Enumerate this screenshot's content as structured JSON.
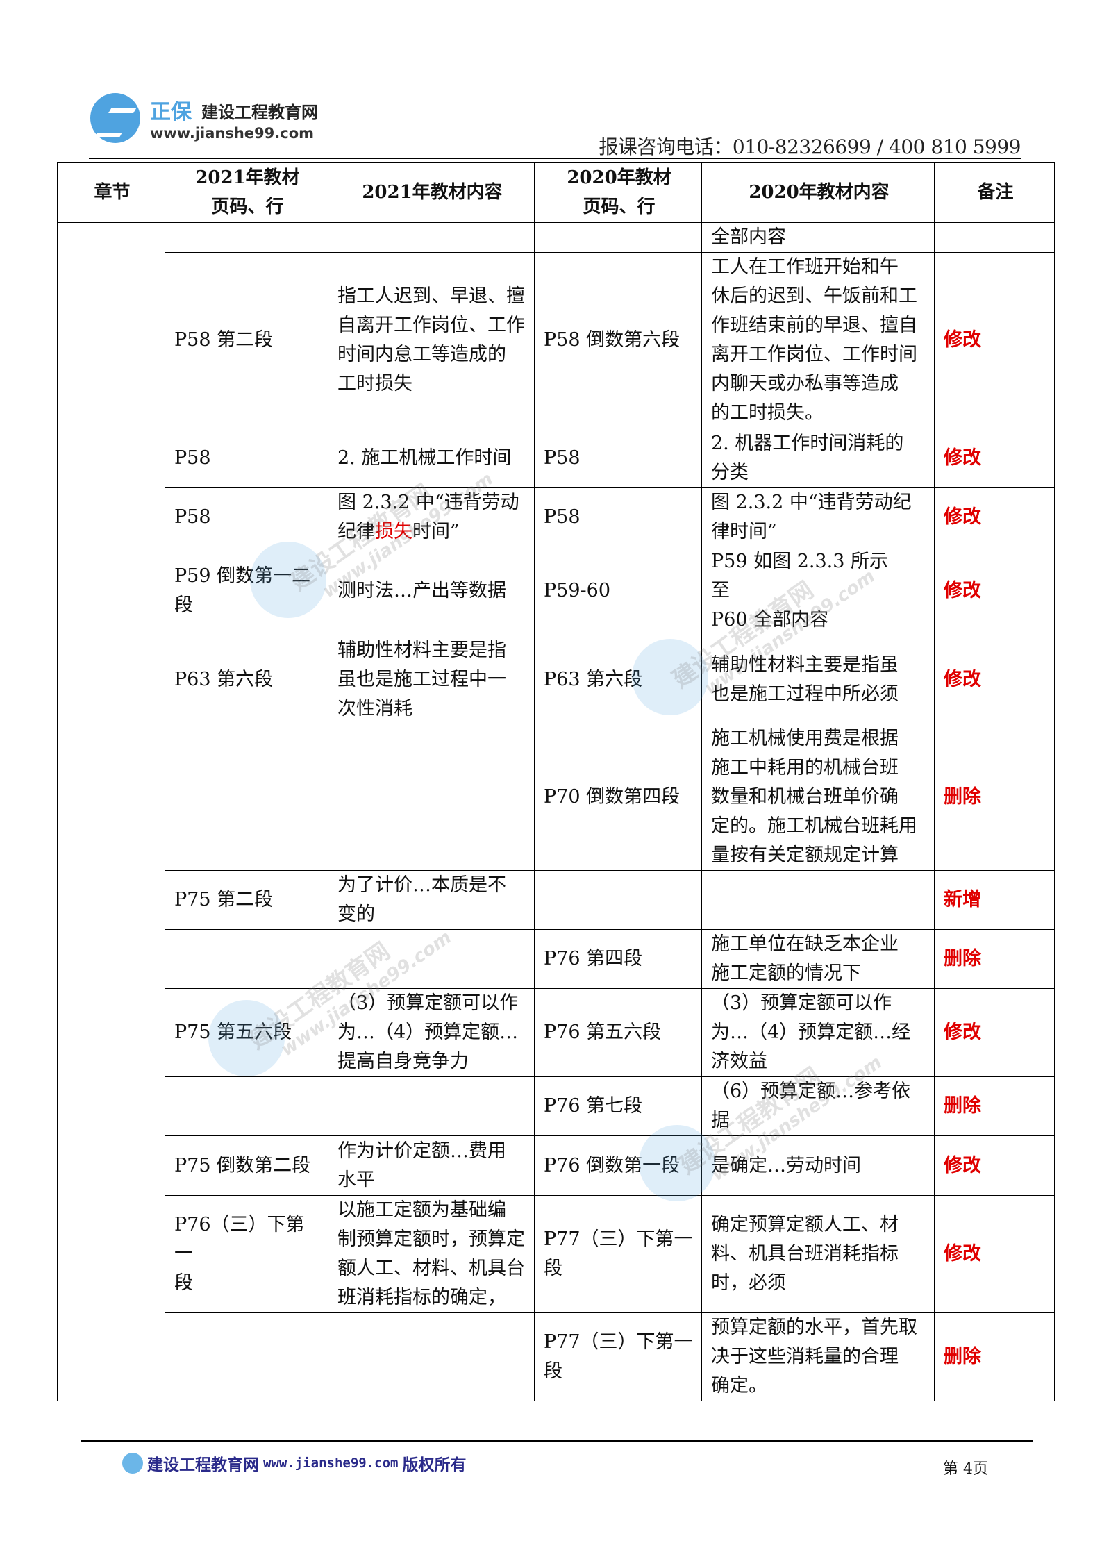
{
  "header": {
    "logo_brand": "正保",
    "logo_name": "建设工程教育网",
    "logo_url": "www.jianshe99.com",
    "phone": "报课咨询电话：010-82326699 / 400 810 5999"
  },
  "table": {
    "columns": [
      "章节",
      "2021年教材\n页码、行",
      "2021年教材内容",
      "2020年教材\n页码、行",
      "2020年教材内容",
      "备注"
    ],
    "rows": [
      {
        "p2021": "",
        "c2021": "",
        "p2020": "",
        "c2020": "全部内容",
        "note": ""
      },
      {
        "p2021": "P58 第二段",
        "c2021": "指工人迟到、早退、擅\n自离开工作岗位、工作\n时间内怠工等造成的\n工时损失",
        "p2020": "P58 倒数第六段",
        "c2020": "工人在工作班开始和午\n休后的迟到、午饭前和工\n作班结束前的早退、擅自\n离开工作岗位、工作时间\n内聊天或办私事等造成\n的工时损失。",
        "note": "修改"
      },
      {
        "p2021": "P58",
        "c2021": "2. 施工机械工作时间",
        "p2020": "P58",
        "c2020": "2. 机器工作时间消耗的\n分类",
        "note": "修改"
      },
      {
        "p2021": "P58",
        "c2021_parts": [
          "图 2.3.2 中“违背劳动\n纪律",
          "损失",
          "时间”"
        ],
        "p2020": "P58",
        "c2020": "图 2.3.2 中“违背劳动纪\n律时间”",
        "note": "修改"
      },
      {
        "p2021": "P59 倒数第一二\n段",
        "c2021": "测时法…产出等数据",
        "p2020": "P59-60",
        "c2020": "P59 如图 2.3.3 所示\n至\nP60 全部内容",
        "note": "修改"
      },
      {
        "p2021": "P63 第六段",
        "c2021": "辅助性材料主要是指\n虽也是施工过程中一\n次性消耗",
        "p2020": "P63 第六段",
        "c2020": "辅助性材料主要是指虽\n也是施工过程中所必须",
        "note": "修改"
      },
      {
        "p2021": "",
        "c2021": "",
        "p2020": "P70 倒数第四段",
        "c2020": "施工机械使用费是根据\n施工中耗用的机械台班\n数量和机械台班单价确\n定的。施工机械台班耗用\n量按有关定额规定计算",
        "note": "删除"
      },
      {
        "p2021": "P75 第二段",
        "c2021": "为了计价…本质是不\n变的",
        "p2020": "",
        "c2020": "",
        "note": "新增"
      },
      {
        "p2021": "",
        "c2021": "",
        "p2020": "P76 第四段",
        "c2020": "施工单位在缺乏本企业\n施工定额的情况下",
        "note": "删除"
      },
      {
        "p2021": "P75 第五六段",
        "c2021": "（3）预算定额可以作\n为…（4）预算定额…\n提高自身竞争力",
        "p2020": "P76 第五六段",
        "c2020": "（3）预算定额可以作\n为…（4）预算定额…经\n济效益",
        "note": "修改"
      },
      {
        "p2021": "",
        "c2021": "",
        "p2020": "P76 第七段",
        "c2020": "（6）预算定额…参考依\n据",
        "note": "删除"
      },
      {
        "p2021": "P75 倒数第二段",
        "c2021": "作为计价定额…费用\n水平",
        "p2020": "P76 倒数第一段",
        "c2020": "是确定…劳动时间",
        "note": "修改"
      },
      {
        "p2021": "P76（三）下第一\n段",
        "c2021": "以施工定额为基础编\n制预算定额时，预算定\n额人工、材料、机具台\n班消耗指标的确定，",
        "p2020": "P77（三）下第一\n段",
        "c2020": "确定预算定额人工、材\n料、机具台班消耗指标\n时，必须",
        "note": "修改"
      },
      {
        "p2021": "",
        "c2021": "",
        "p2020": "P77（三）下第一\n段",
        "c2020": "预算定额的水平，首先取\n决于这些消耗量的合理\n确定。",
        "note": "删除"
      }
    ]
  },
  "colors": {
    "note_red": "#e00000",
    "brand_blue": "#4fa3e0",
    "footer_navy": "#2a2a8a"
  },
  "watermark": {
    "text": "建设工程教育网",
    "url": "www.jianshe99.com"
  },
  "footer": {
    "site": "建设工程教育网",
    "url": "www.jianshe99.com",
    "rights": "版权所有",
    "page": "第 4页"
  }
}
